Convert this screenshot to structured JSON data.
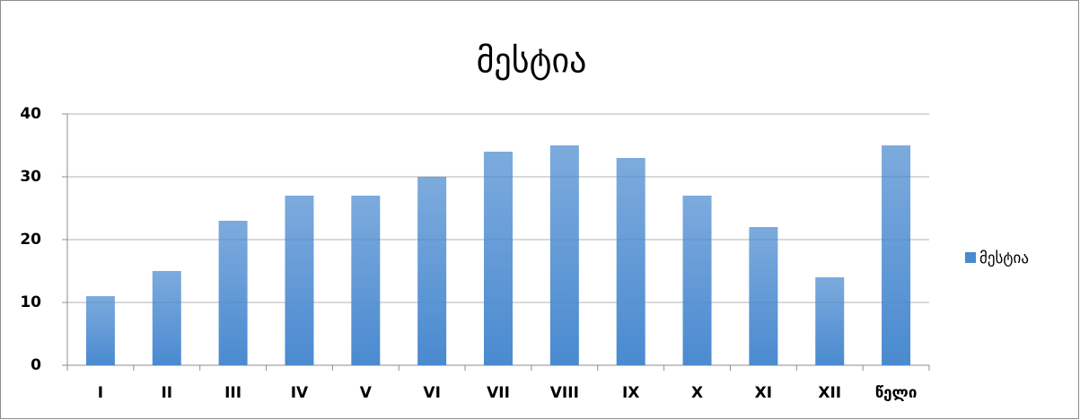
{
  "chart_data": {
    "type": "bar",
    "title": "მესტია",
    "categories": [
      "I",
      "II",
      "III",
      "IV",
      "V",
      "VI",
      "VII",
      "VIII",
      "IX",
      "X",
      "XI",
      "XII",
      "წელი"
    ],
    "series": [
      {
        "name": "მესტია",
        "color": "#4a8ad0",
        "values": [
          11,
          15,
          23,
          27,
          27,
          30,
          34,
          35,
          33,
          27,
          22,
          14,
          35
        ]
      }
    ],
    "ylim": [
      0,
      40
    ],
    "yticks": [
      0,
      10,
      20,
      30,
      40
    ],
    "grid": true,
    "legend": "right"
  }
}
